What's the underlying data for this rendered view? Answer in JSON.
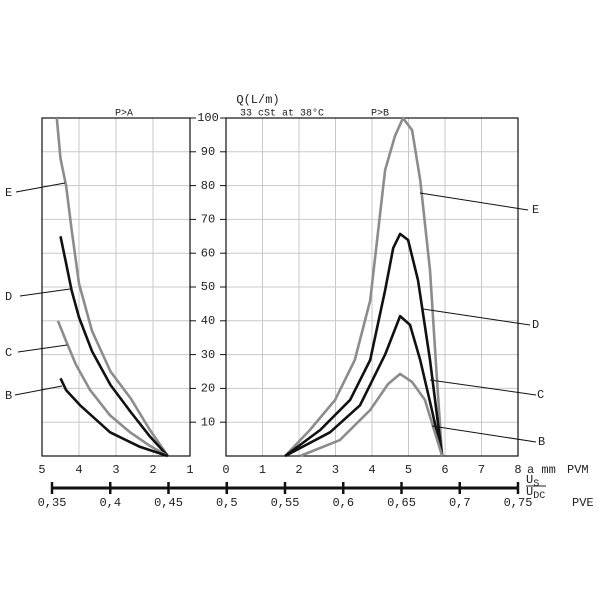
{
  "chart_data": [
    {
      "type": "line",
      "title": "P>A",
      "xlim": [
        5,
        1
      ],
      "xticks": [
        5,
        4,
        3,
        2,
        1
      ],
      "ylim": [
        0,
        100
      ],
      "grid": true,
      "series": [
        {
          "name": "E",
          "color": "#8c8c8c",
          "x": [
            4.6,
            4.5,
            4.35,
            4.2,
            4.0,
            3.65,
            3.15,
            2.6,
            2.1,
            1.6
          ],
          "values": [
            100,
            88,
            80,
            67,
            51,
            37,
            25,
            17,
            8,
            0
          ]
        },
        {
          "name": "D",
          "color": "#111111",
          "x": [
            4.5,
            4.35,
            4.2,
            4.0,
            3.65,
            3.15,
            2.6,
            2.1,
            1.6
          ],
          "values": [
            65,
            57,
            49,
            41,
            31,
            21,
            13,
            6,
            0
          ]
        },
        {
          "name": "C",
          "color": "#8c8c8c",
          "x": [
            4.57,
            4.35,
            4.08,
            3.7,
            3.16,
            2.62,
            2.08,
            1.6
          ],
          "values": [
            40,
            34,
            27,
            19.5,
            12,
            7,
            3,
            0
          ]
        },
        {
          "name": "B",
          "color": "#111111",
          "x": [
            4.5,
            4.35,
            3.97,
            3.16,
            2.35,
            1.6
          ],
          "values": [
            23,
            19.5,
            15,
            7,
            2.7,
            0
          ]
        }
      ]
    },
    {
      "type": "line",
      "title": "P>B",
      "ylabel": "Q(L/m)",
      "subtitle": "33 cSt at 38°C",
      "xunit": "a mm",
      "xlabel": "PVM",
      "xlim": [
        0,
        8
      ],
      "xticks": [
        0,
        1,
        2,
        3,
        4,
        5,
        6,
        7,
        8
      ],
      "ylim": [
        0,
        100
      ],
      "yticks": [
        10,
        20,
        30,
        40,
        50,
        60,
        70,
        80,
        90,
        100
      ],
      "grid": true,
      "series": [
        {
          "name": "E",
          "color": "#8c8c8c",
          "x": [
            1.62,
            2.3,
            2.99,
            3.53,
            3.95,
            4.36,
            4.63,
            4.85,
            5.1,
            5.32,
            5.59,
            5.78,
            5.92
          ],
          "values": [
            0,
            7.7,
            16.6,
            28.4,
            46,
            84.6,
            94.7,
            100,
            96.4,
            81.7,
            55,
            22.5,
            0
          ]
        },
        {
          "name": "D",
          "color": "#111111",
          "x": [
            1.62,
            2.58,
            3.4,
            3.95,
            4.36,
            4.58,
            4.77,
            4.99,
            5.26,
            5.59,
            5.92
          ],
          "values": [
            0,
            7.7,
            16.6,
            28.4,
            49,
            61.5,
            65.7,
            63.9,
            52,
            28.4,
            0
          ]
        },
        {
          "name": "C",
          "color": "#111111",
          "x": [
            1.62,
            2.85,
            3.67,
            4.36,
            4.77,
            5.04,
            5.32,
            5.64,
            5.92
          ],
          "values": [
            0,
            7,
            15,
            30,
            41.4,
            38.8,
            28.4,
            13.6,
            0
          ]
        },
        {
          "name": "B",
          "color": "#8c8c8c",
          "x": [
            2.03,
            3.12,
            3.95,
            4.44,
            4.77,
            5.1,
            5.45,
            5.92
          ],
          "values": [
            0,
            4.7,
            13.6,
            21.3,
            24.3,
            21.9,
            16.6,
            0
          ]
        }
      ]
    }
  ],
  "pve_axis": {
    "label": "PVE",
    "lim": [
      0.35,
      0.75
    ],
    "ratio": {
      "numerator": {
        "symbol": "U",
        "sub": "S"
      },
      "denominator": {
        "symbol": "U",
        "sub": "DC"
      }
    },
    "ticks": [
      {
        "value": 0.35,
        "label": "0,35"
      },
      {
        "value": 0.4,
        "label": "0,4"
      },
      {
        "value": 0.45,
        "label": "0,45"
      },
      {
        "value": 0.5,
        "label": "0,5"
      },
      {
        "value": 0.55,
        "label": "0,55"
      },
      {
        "value": 0.6,
        "label": "0,6"
      },
      {
        "value": 0.65,
        "label": "0,65"
      },
      {
        "value": 0.7,
        "label": "0,7"
      },
      {
        "value": 0.75,
        "label": "0,75"
      }
    ]
  }
}
